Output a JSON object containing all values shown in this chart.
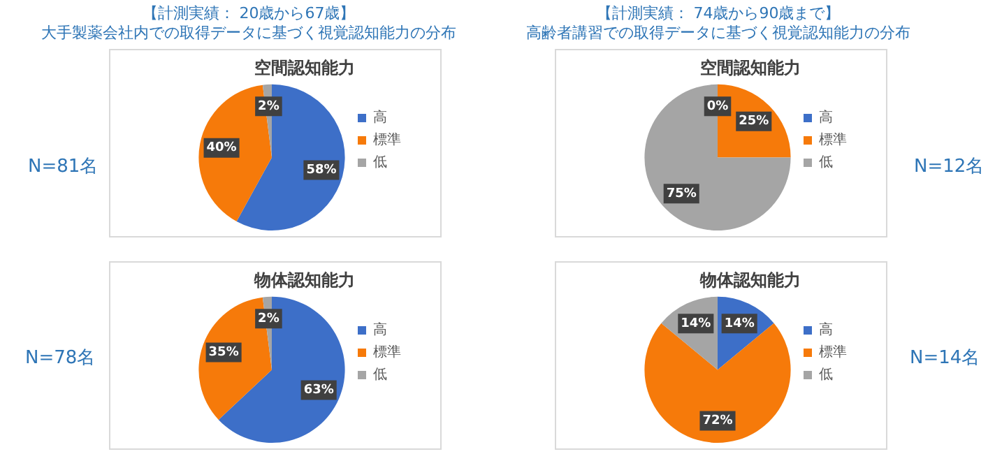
{
  "chart_data": [
    {
      "type": "pie",
      "title": "空間認知能力",
      "categories": [
        "高",
        "標準",
        "低"
      ],
      "values": [
        58,
        40,
        2
      ],
      "colors": [
        "#3d6fc8",
        "#f67a0a",
        "#a5a5a5"
      ],
      "value_labels": [
        "58%",
        "40%",
        "2%"
      ],
      "legend": "right",
      "annotations": [
        "【計測実績： 20歳から67歳】",
        "大手製薬会社内での取得データに基づく視覚認知能力の分布",
        "N=81名"
      ]
    },
    {
      "type": "pie",
      "title": "空間認知能力",
      "categories": [
        "高",
        "標準",
        "低"
      ],
      "values": [
        0,
        25,
        75
      ],
      "colors": [
        "#3d6fc8",
        "#f67a0a",
        "#a5a5a5"
      ],
      "value_labels": [
        "0%",
        "25%",
        "75%"
      ],
      "legend": "right",
      "annotations": [
        "【計測実績： 74歳から90歳まで】",
        "高齢者講習での取得データに基づく視覚認知能力の分布",
        "N=12名"
      ]
    },
    {
      "type": "pie",
      "title": "物体認知能力",
      "categories": [
        "高",
        "標準",
        "低"
      ],
      "values": [
        63,
        35,
        2
      ],
      "colors": [
        "#3d6fc8",
        "#f67a0a",
        "#a5a5a5"
      ],
      "value_labels": [
        "63%",
        "35%",
        "2%"
      ],
      "legend": "right",
      "annotations": [
        "N=78名"
      ]
    },
    {
      "type": "pie",
      "title": "物体認知能力",
      "categories": [
        "高",
        "標準",
        "低"
      ],
      "values": [
        14,
        72,
        14
      ],
      "colors": [
        "#3d6fc8",
        "#f67a0a",
        "#a5a5a5"
      ],
      "value_labels": [
        "14%",
        "72%",
        "14%"
      ],
      "legend": "right",
      "annotations": [
        "N=14名"
      ]
    }
  ]
}
